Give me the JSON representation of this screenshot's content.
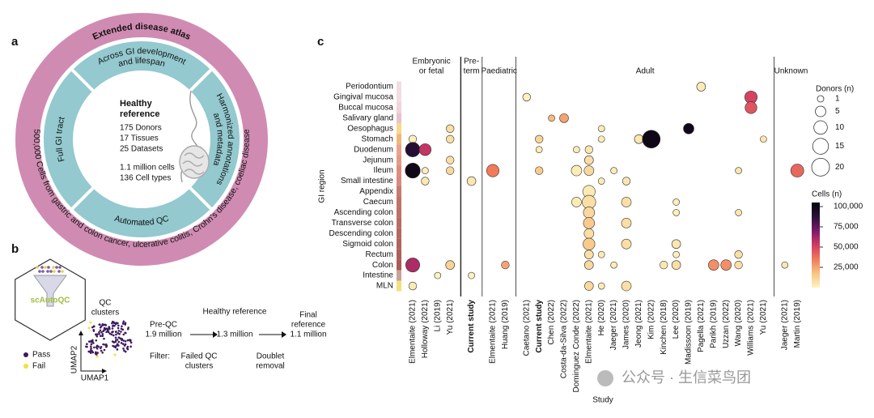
{
  "panel_labels": {
    "a": "a",
    "b": "b",
    "c": "c"
  },
  "panel_a": {
    "outer_top": "Extended disease atlas",
    "outer_bottom": "500,000 Cells from gastric and colon cancer, ulcerative colitis, Crohn's disease, coeliac disease",
    "segment_top": [
      "Across GI development",
      "and lifespan"
    ],
    "segment_right": [
      "Harmonized annotations",
      "and metadata"
    ],
    "segment_bottom": "Automated QC",
    "segment_left": "Full GI tract",
    "center_title": [
      "Healthy",
      "reference"
    ],
    "center_lines": [
      "175 Donors",
      "17 Tissues",
      "25 Datasets"
    ],
    "center_lines_2": [
      "1.1 million cells",
      "136 Cell types"
    ]
  },
  "panel_b": {
    "tool": "scAutoQC",
    "qc_clusters": [
      "QC",
      "clusters"
    ],
    "legend": [
      "Pass",
      "Fail"
    ],
    "axis_x": "UMAP1",
    "axis_y": "UMAP2",
    "steps": [
      {
        "title": [
          "Pre-QC"
        ],
        "count": "1.9 million"
      },
      {
        "title": [
          "Healthy reference"
        ],
        "count": "1.3 million"
      },
      {
        "title": [
          "Final",
          "reference"
        ],
        "count": "1.1 million"
      }
    ],
    "filter_label": "Filter:",
    "filters": [
      [
        "Failed QC",
        "clusters"
      ],
      [
        "Doublet",
        "removal"
      ]
    ]
  },
  "chart_data": {
    "type": "bubble",
    "y_axis_label": "GI region",
    "x_axis_label": "Study",
    "regions": [
      "Periodontium",
      "Gingival mucosa",
      "Buccal mucosa",
      "Salivary gland",
      "Oesophagus",
      "Stomach",
      "Duodenum",
      "Jejunum",
      "Ileum",
      "Small intestine",
      "Appendix",
      "Caecum",
      "Ascending colon",
      "Transverse colon",
      "Descending colon",
      "Sigmoid colon",
      "Rectum",
      "Colon",
      "Intestine",
      "MLN"
    ],
    "region_colors": [
      "#f3dde2",
      "#f3dde2",
      "#f1d3da",
      "#e9c3cc",
      "#f6d98e",
      "#f0b77a",
      "#e9a38a",
      "#e39a86",
      "#dc8d80",
      "#d88a80",
      "#c47c70",
      "#c07468",
      "#bd7066",
      "#b96b62",
      "#b5675f",
      "#b1635c",
      "#ad5f59",
      "#a95b56",
      "#c9a29a",
      "#f4e07a"
    ],
    "groups": [
      {
        "label": [
          "Embryonic",
          "or fetal"
        ],
        "studies": [
          {
            "name": "Elmentaite (2021)",
            "points": [
              {
                "region": "Stomach",
                "donors": 2,
                "cells": 2000
              },
              {
                "region": "Duodenum",
                "donors": 12,
                "cells": 90000
              },
              {
                "region": "Ileum",
                "donors": 13,
                "cells": 100000
              },
              {
                "region": "Colon",
                "donors": 11,
                "cells": 60000
              },
              {
                "region": "MLN",
                "donors": 2,
                "cells": 3000
              }
            ]
          },
          {
            "name": "Holloway (2021)",
            "points": [
              {
                "region": "Duodenum",
                "donors": 7,
                "cells": 55000
              },
              {
                "region": "Ileum",
                "donors": 1,
                "cells": 2000
              },
              {
                "region": "Small intestine",
                "donors": 2,
                "cells": 5000
              }
            ]
          },
          {
            "name": "Li (2019)",
            "points": [
              {
                "region": "Intestine",
                "donors": 1,
                "cells": 1000
              }
            ]
          },
          {
            "name": "Yu (2021)",
            "points": [
              {
                "region": "Oesophagus",
                "donors": 2,
                "cells": 8000
              },
              {
                "region": "Stomach",
                "donors": 2,
                "cells": 8000
              },
              {
                "region": "Jejunum",
                "donors": 2,
                "cells": 8000
              },
              {
                "region": "Ileum",
                "donors": 2,
                "cells": 10000
              },
              {
                "region": "Colon",
                "donors": 3,
                "cells": 12000
              }
            ]
          }
        ]
      },
      {
        "label": [
          "Pre-",
          "term"
        ],
        "studies": [
          {
            "name": "Current study",
            "bold": true,
            "points": [
              {
                "region": "Small intestine",
                "donors": 3,
                "cells": 5000
              },
              {
                "region": "Intestine",
                "donors": 1,
                "cells": 1000
              }
            ]
          }
        ]
      },
      {
        "label": [
          "Paediatric"
        ],
        "studies": [
          {
            "name": "Elmentaite (2021)",
            "points": [
              {
                "region": "Ileum",
                "donors": 8,
                "cells": 35000
              }
            ]
          },
          {
            "name": "Huang (2019)",
            "points": [
              {
                "region": "Colon",
                "donors": 2,
                "cells": 25000
              }
            ]
          }
        ]
      },
      {
        "label": [
          "Adult"
        ],
        "studies": [
          {
            "name": "Caetano (2021)",
            "points": [
              {
                "region": "Gingival mucosa",
                "donors": 2,
                "cells": 1000
              }
            ]
          },
          {
            "name": "Current study",
            "bold": true,
            "points": [
              {
                "region": "Stomach",
                "donors": 2,
                "cells": 12000
              },
              {
                "region": "Duodenum",
                "donors": 1,
                "cells": 3000
              },
              {
                "region": "Ileum",
                "donors": 2,
                "cells": 15000
              }
            ]
          },
          {
            "name": "Chen (2022)",
            "points": [
              {
                "region": "Salivary gland",
                "donors": 1,
                "cells": 20000
              }
            ]
          },
          {
            "name": "Costa-da-Silva (2022)",
            "points": [
              {
                "region": "Salivary gland",
                "donors": 3,
                "cells": 25000
              }
            ]
          },
          {
            "name": "Dominguez Conde (2022)",
            "points": [
              {
                "region": "Duodenum",
                "donors": 1,
                "cells": 3000
              },
              {
                "region": "Ileum",
                "donors": 5,
                "cells": 3000
              },
              {
                "region": "Caecum",
                "donors": 4,
                "cells": 3000
              }
            ]
          },
          {
            "name": "Elmentaite (2021)",
            "points": [
              {
                "region": "Duodenum",
                "donors": 2,
                "cells": 5000
              },
              {
                "region": "Jejunum",
                "donors": 3,
                "cells": 8000
              },
              {
                "region": "Ileum",
                "donors": 4,
                "cells": 10000
              },
              {
                "region": "Appendix",
                "donors": 8,
                "cells": 4000
              },
              {
                "region": "Caecum",
                "donors": 10,
                "cells": 8000
              },
              {
                "region": "Ascending colon",
                "donors": 6,
                "cells": 10000
              },
              {
                "region": "Transverse colon",
                "donors": 6,
                "cells": 15000
              },
              {
                "region": "Descending colon",
                "donors": 4,
                "cells": 8000
              },
              {
                "region": "Sigmoid colon",
                "donors": 7,
                "cells": 15000
              },
              {
                "region": "Rectum",
                "donors": 3,
                "cells": 8000
              },
              {
                "region": "Colon",
                "donors": 3,
                "cells": 10000
              },
              {
                "region": "MLN",
                "donors": 3,
                "cells": 10000
              }
            ]
          },
          {
            "name": "He (2020)",
            "points": [
              {
                "region": "Oesophagus",
                "donors": 1,
                "cells": 3000
              },
              {
                "region": "Stomach",
                "donors": 1,
                "cells": 3000
              },
              {
                "region": "Small intestine",
                "donors": 1,
                "cells": 3000
              },
              {
                "region": "Rectum",
                "donors": 1,
                "cells": 3000
              },
              {
                "region": "MLN",
                "donors": 1,
                "cells": 3000
              }
            ]
          },
          {
            "name": "Jaeger (2021)",
            "points": [
              {
                "region": "Ileum",
                "donors": 1,
                "cells": 3000
              },
              {
                "region": "Colon",
                "donors": 1,
                "cells": 3000
              }
            ]
          },
          {
            "name": "James (2020)",
            "points": [
              {
                "region": "Small intestine",
                "donors": 2,
                "cells": 5000
              },
              {
                "region": "Caecum",
                "donors": 4,
                "cells": 8000
              },
              {
                "region": "Transverse colon",
                "donors": 4,
                "cells": 8000
              },
              {
                "region": "Sigmoid colon",
                "donors": 4,
                "cells": 8000
              },
              {
                "region": "MLN",
                "donors": 4,
                "cells": 8000
              }
            ]
          },
          {
            "name": "Jeong (2021)",
            "points": [
              {
                "region": "Stomach",
                "donors": 3,
                "cells": 5000
              }
            ]
          },
          {
            "name": "Kim (2022)",
            "points": [
              {
                "region": "Stomach",
                "donors": 20,
                "cells": 100000
              }
            ]
          },
          {
            "name": "Kinchen (2018)",
            "points": [
              {
                "region": "Colon",
                "donors": 2,
                "cells": 5000
              }
            ]
          },
          {
            "name": "Lee (2020)",
            "points": [
              {
                "region": "Caecum",
                "donors": 1,
                "cells": 2000
              },
              {
                "region": "Ascending colon",
                "donors": 1,
                "cells": 2000
              },
              {
                "region": "Sigmoid colon",
                "donors": 3,
                "cells": 5000
              },
              {
                "region": "Rectum",
                "donors": 1,
                "cells": 2000
              },
              {
                "region": "Colon",
                "donors": 3,
                "cells": 8000
              }
            ]
          },
          {
            "name": "Madissoon (2019)",
            "points": [
              {
                "region": "Oesophagus",
                "donors": 5,
                "cells": 100000
              }
            ]
          },
          {
            "name": "Pagella (2021)",
            "points": [
              {
                "region": "Periodontium",
                "donors": 3,
                "cells": 3000
              }
            ]
          },
          {
            "name": "Parikh (2019)",
            "points": [
              {
                "region": "Colon",
                "donors": 5,
                "cells": 30000
              }
            ]
          },
          {
            "name": "Uzzan (2022)",
            "points": [
              {
                "region": "Colon",
                "donors": 5,
                "cells": 30000
              }
            ]
          },
          {
            "name": "Wang (2020)",
            "points": [
              {
                "region": "Ileum",
                "donors": 1,
                "cells": 5000
              },
              {
                "region": "Ascending colon",
                "donors": 1,
                "cells": 5000
              },
              {
                "region": "Rectum",
                "donors": 2,
                "cells": 8000
              },
              {
                "region": "Colon",
                "donors": 2,
                "cells": 8000
              }
            ]
          },
          {
            "name": "Williams (2021)",
            "points": [
              {
                "region": "Gingival mucosa",
                "donors": 8,
                "cells": 50000
              },
              {
                "region": "Buccal mucosa",
                "donors": 7,
                "cells": 45000
              }
            ]
          },
          {
            "name": "Yu (2021)",
            "points": [
              {
                "region": "Stomach",
                "donors": 1,
                "cells": 5000
              }
            ]
          }
        ]
      },
      {
        "label": [
          "Unknown"
        ],
        "studies": [
          {
            "name": "Jaeger (2021)",
            "points": [
              {
                "region": "Colon",
                "donors": 1,
                "cells": 5000
              }
            ]
          },
          {
            "name": "Martin (2019)",
            "points": [
              {
                "region": "Ileum",
                "donors": 9,
                "cells": 40000
              }
            ]
          }
        ]
      }
    ],
    "size_legend": {
      "title": "Donors (n)",
      "values": [
        1,
        5,
        10,
        15,
        20
      ]
    },
    "color_legend": {
      "title": "Cells (n)",
      "clim": [
        0,
        105000
      ],
      "ticks": [
        {
          "value": 25000,
          "label": "25,000"
        },
        {
          "value": 50000,
          "label": "50,000"
        },
        {
          "value": 75000,
          "label": "75,000"
        },
        {
          "value": 100000,
          "label": "100,000"
        }
      ],
      "colormap": [
        "#fcf5c0",
        "#f9c383",
        "#f07a5a",
        "#d23a63",
        "#7a1a6b",
        "#2a0f3a",
        "#050508"
      ]
    }
  },
  "watermark": "公众号 · 生信菜鸟团"
}
